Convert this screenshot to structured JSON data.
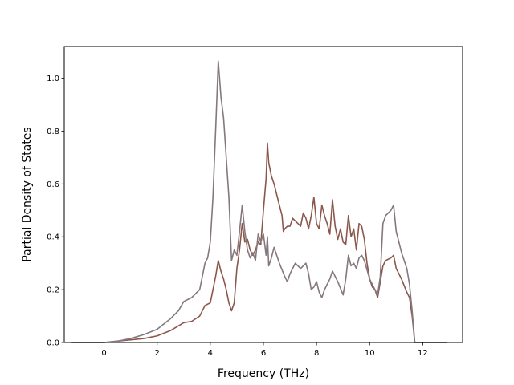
{
  "chart_data": {
    "type": "line",
    "title": "",
    "xlabel": "Frequency (THz)",
    "ylabel": "Partial Density of States",
    "xlim": [
      -1.5,
      13.5
    ],
    "ylim": [
      0.0,
      1.12
    ],
    "xticks": [
      "0",
      "2",
      "4",
      "6",
      "8",
      "10",
      "12"
    ],
    "yticks": [
      "0.0",
      "0.2",
      "0.4",
      "0.6",
      "0.8",
      "1.0"
    ],
    "grid": false,
    "legend": "none",
    "series": [
      {
        "color": "#8c564b",
        "points": [
          [
            -1.2,
            0.0
          ],
          [
            0.0,
            0.0
          ],
          [
            0.5,
            0.005
          ],
          [
            1.0,
            0.01
          ],
          [
            1.5,
            0.015
          ],
          [
            2.0,
            0.025
          ],
          [
            2.5,
            0.045
          ],
          [
            3.0,
            0.075
          ],
          [
            3.3,
            0.08
          ],
          [
            3.6,
            0.1
          ],
          [
            3.8,
            0.14
          ],
          [
            4.0,
            0.15
          ],
          [
            4.2,
            0.25
          ],
          [
            4.3,
            0.31
          ],
          [
            4.4,
            0.27
          ],
          [
            4.5,
            0.24
          ],
          [
            4.6,
            0.2
          ],
          [
            4.7,
            0.15
          ],
          [
            4.8,
            0.12
          ],
          [
            4.9,
            0.15
          ],
          [
            5.0,
            0.28
          ],
          [
            5.1,
            0.35
          ],
          [
            5.2,
            0.45
          ],
          [
            5.3,
            0.38
          ],
          [
            5.4,
            0.39
          ],
          [
            5.5,
            0.35
          ],
          [
            5.6,
            0.33
          ],
          [
            5.7,
            0.35
          ],
          [
            5.8,
            0.38
          ],
          [
            5.9,
            0.37
          ],
          [
            6.0,
            0.5
          ],
          [
            6.1,
            0.62
          ],
          [
            6.15,
            0.755
          ],
          [
            6.2,
            0.68
          ],
          [
            6.3,
            0.63
          ],
          [
            6.4,
            0.6
          ],
          [
            6.5,
            0.56
          ],
          [
            6.6,
            0.52
          ],
          [
            6.7,
            0.48
          ],
          [
            6.75,
            0.42
          ],
          [
            6.8,
            0.43
          ],
          [
            6.9,
            0.44
          ],
          [
            7.0,
            0.44
          ],
          [
            7.1,
            0.47
          ],
          [
            7.3,
            0.45
          ],
          [
            7.4,
            0.44
          ],
          [
            7.5,
            0.49
          ],
          [
            7.6,
            0.47
          ],
          [
            7.7,
            0.43
          ],
          [
            7.8,
            0.48
          ],
          [
            7.9,
            0.55
          ],
          [
            8.0,
            0.45
          ],
          [
            8.1,
            0.43
          ],
          [
            8.2,
            0.52
          ],
          [
            8.3,
            0.48
          ],
          [
            8.4,
            0.45
          ],
          [
            8.5,
            0.41
          ],
          [
            8.6,
            0.54
          ],
          [
            8.7,
            0.44
          ],
          [
            8.8,
            0.39
          ],
          [
            8.9,
            0.43
          ],
          [
            9.0,
            0.38
          ],
          [
            9.1,
            0.37
          ],
          [
            9.2,
            0.48
          ],
          [
            9.3,
            0.4
          ],
          [
            9.4,
            0.43
          ],
          [
            9.5,
            0.35
          ],
          [
            9.6,
            0.45
          ],
          [
            9.7,
            0.44
          ],
          [
            9.8,
            0.39
          ],
          [
            9.9,
            0.3
          ],
          [
            10.0,
            0.24
          ],
          [
            10.1,
            0.21
          ],
          [
            10.2,
            0.2
          ],
          [
            10.3,
            0.17
          ],
          [
            10.4,
            0.23
          ],
          [
            10.5,
            0.29
          ],
          [
            10.6,
            0.31
          ],
          [
            10.8,
            0.32
          ],
          [
            10.9,
            0.33
          ],
          [
            11.0,
            0.28
          ],
          [
            11.2,
            0.24
          ],
          [
            11.4,
            0.19
          ],
          [
            11.5,
            0.17
          ],
          [
            11.6,
            0.1
          ],
          [
            11.7,
            0.0
          ],
          [
            12.9,
            0.0
          ]
        ]
      },
      {
        "color": "#85777e",
        "points": [
          [
            -1.2,
            0.0
          ],
          [
            0.0,
            0.0
          ],
          [
            0.5,
            0.005
          ],
          [
            1.0,
            0.015
          ],
          [
            1.5,
            0.03
          ],
          [
            2.0,
            0.05
          ],
          [
            2.5,
            0.09
          ],
          [
            2.8,
            0.12
          ],
          [
            3.0,
            0.155
          ],
          [
            3.3,
            0.17
          ],
          [
            3.6,
            0.2
          ],
          [
            3.8,
            0.3
          ],
          [
            3.9,
            0.32
          ],
          [
            4.0,
            0.38
          ],
          [
            4.1,
            0.55
          ],
          [
            4.2,
            0.8
          ],
          [
            4.3,
            1.065
          ],
          [
            4.4,
            0.93
          ],
          [
            4.5,
            0.85
          ],
          [
            4.6,
            0.7
          ],
          [
            4.7,
            0.55
          ],
          [
            4.8,
            0.31
          ],
          [
            4.9,
            0.35
          ],
          [
            5.0,
            0.33
          ],
          [
            5.1,
            0.42
          ],
          [
            5.2,
            0.52
          ],
          [
            5.3,
            0.42
          ],
          [
            5.4,
            0.35
          ],
          [
            5.5,
            0.32
          ],
          [
            5.6,
            0.34
          ],
          [
            5.7,
            0.31
          ],
          [
            5.8,
            0.41
          ],
          [
            5.9,
            0.38
          ],
          [
            6.0,
            0.41
          ],
          [
            6.1,
            0.33
          ],
          [
            6.15,
            0.4
          ],
          [
            6.2,
            0.29
          ],
          [
            6.3,
            0.32
          ],
          [
            6.4,
            0.36
          ],
          [
            6.5,
            0.33
          ],
          [
            6.6,
            0.3
          ],
          [
            6.8,
            0.25
          ],
          [
            6.9,
            0.23
          ],
          [
            7.0,
            0.26
          ],
          [
            7.2,
            0.3
          ],
          [
            7.4,
            0.28
          ],
          [
            7.6,
            0.3
          ],
          [
            7.7,
            0.26
          ],
          [
            7.8,
            0.2
          ],
          [
            7.9,
            0.21
          ],
          [
            8.0,
            0.23
          ],
          [
            8.1,
            0.19
          ],
          [
            8.2,
            0.17
          ],
          [
            8.3,
            0.2
          ],
          [
            8.4,
            0.22
          ],
          [
            8.5,
            0.24
          ],
          [
            8.6,
            0.27
          ],
          [
            8.8,
            0.23
          ],
          [
            9.0,
            0.18
          ],
          [
            9.1,
            0.24
          ],
          [
            9.2,
            0.33
          ],
          [
            9.3,
            0.29
          ],
          [
            9.4,
            0.3
          ],
          [
            9.5,
            0.28
          ],
          [
            9.6,
            0.32
          ],
          [
            9.7,
            0.33
          ],
          [
            9.8,
            0.31
          ],
          [
            10.0,
            0.24
          ],
          [
            10.2,
            0.2
          ],
          [
            10.3,
            0.18
          ],
          [
            10.4,
            0.25
          ],
          [
            10.5,
            0.45
          ],
          [
            10.6,
            0.48
          ],
          [
            10.8,
            0.5
          ],
          [
            10.9,
            0.52
          ],
          [
            11.0,
            0.42
          ],
          [
            11.2,
            0.34
          ],
          [
            11.4,
            0.28
          ],
          [
            11.5,
            0.22
          ],
          [
            11.6,
            0.12
          ],
          [
            11.7,
            0.0
          ],
          [
            12.9,
            0.0
          ]
        ]
      }
    ]
  }
}
